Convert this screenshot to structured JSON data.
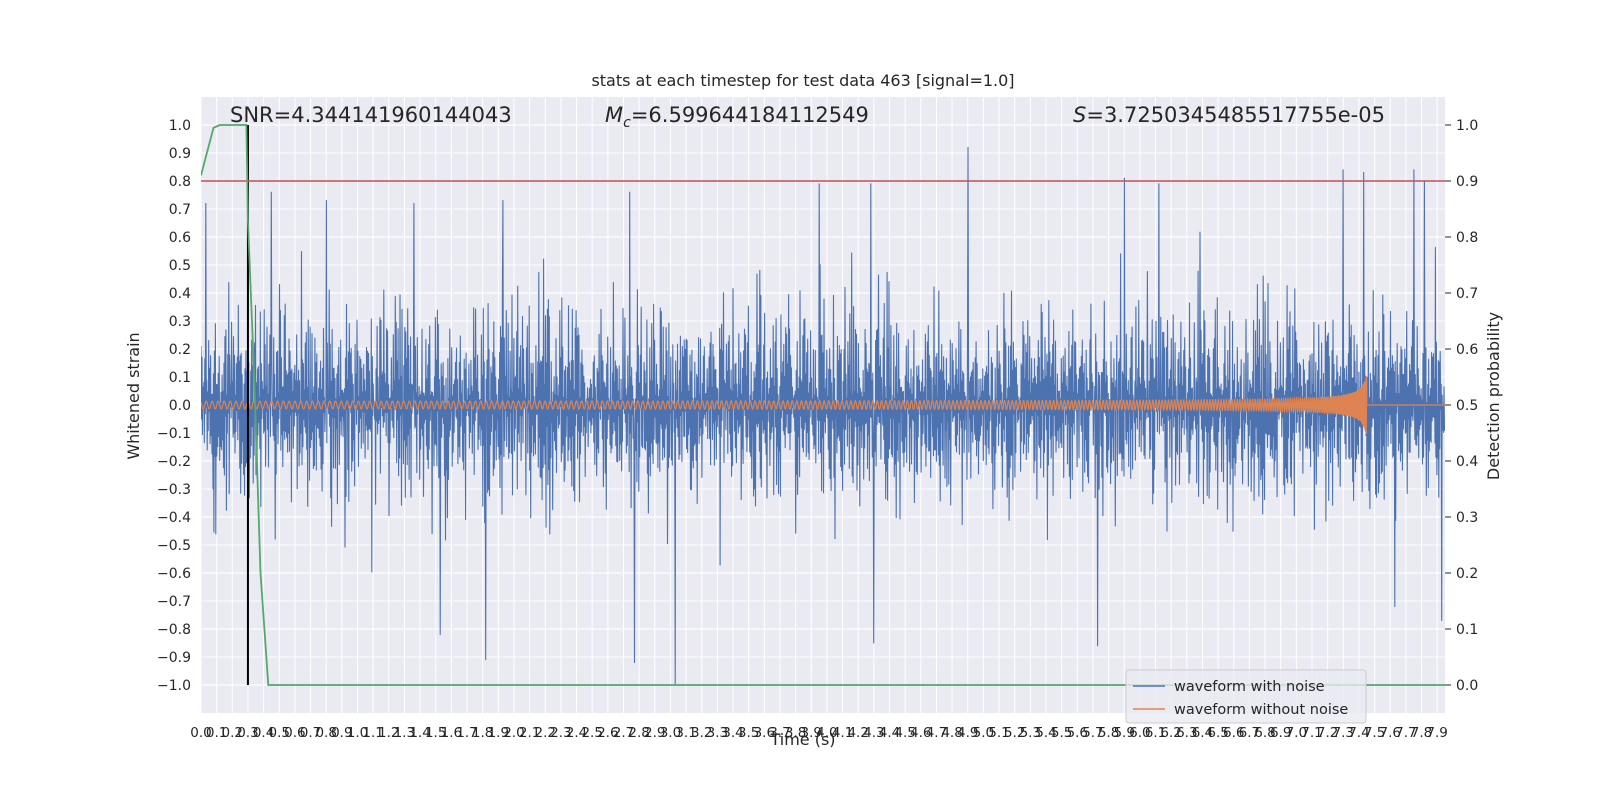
{
  "chart_data": {
    "type": "line",
    "title": "stats at each timestep for test data 463 [signal=1.0]",
    "xlabel": "Time (s)",
    "ylabel": "Whitened strain",
    "ylabel_right": "Detection probability",
    "xlim": [
      0.0,
      7.95
    ],
    "ylim": [
      -1.1,
      1.1
    ],
    "ylim_right": [
      -0.05,
      1.05
    ],
    "xticks": [
      0.0,
      0.1,
      0.2,
      0.3,
      0.4,
      0.5,
      0.6,
      0.7,
      0.8,
      0.9,
      1.0,
      1.1,
      1.2,
      1.3,
      1.4,
      1.5,
      1.6,
      1.7,
      1.8,
      1.9,
      2.0,
      2.1,
      2.2,
      2.3,
      2.4,
      2.5,
      2.6,
      2.7,
      2.8,
      2.9,
      3.0,
      3.1,
      3.2,
      3.3,
      3.4,
      3.5,
      3.6,
      3.7,
      3.8,
      3.9,
      4.0,
      4.1,
      4.2,
      4.3,
      4.4,
      4.5,
      4.6,
      4.7,
      4.8,
      4.9,
      5.0,
      5.1,
      5.2,
      5.3,
      5.4,
      5.5,
      5.6,
      5.7,
      5.8,
      5.9,
      6.0,
      6.1,
      6.2,
      6.3,
      6.4,
      6.5,
      6.6,
      6.7,
      6.8,
      6.9,
      7.0,
      7.1,
      7.2,
      7.3,
      7.4,
      7.5,
      7.6,
      7.7,
      7.8,
      7.9
    ],
    "yticks": [
      -1.0,
      -0.9,
      -0.8,
      -0.7,
      -0.6,
      -0.5,
      -0.4,
      -0.3,
      -0.2,
      -0.1,
      0.0,
      0.1,
      0.2,
      0.3,
      0.4,
      0.5,
      0.6,
      0.7,
      0.8,
      0.9,
      1.0
    ],
    "yticks_right": [
      0.0,
      0.1,
      0.2,
      0.3,
      0.4,
      0.5,
      0.6,
      0.7,
      0.8,
      0.9,
      1.0
    ],
    "xtick_labels": [
      "0.0",
      "0.1",
      "0.2",
      "0.3",
      "0.4",
      "0.5",
      "0.6",
      "0.7",
      "0.8",
      "0.9",
      "1.0",
      "1.1",
      "1.2",
      "1.3",
      "1.4",
      "1.5",
      "1.6",
      "1.7",
      "1.8",
      "1.9",
      "2.0",
      "2.1",
      "2.2",
      "2.3",
      "2.4",
      "2.5",
      "2.6",
      "2.7",
      "2.8",
      "2.9",
      "3.0",
      "3.1",
      "3.2",
      "3.3",
      "3.4",
      "3.5",
      "3.6",
      "3.7",
      "3.8",
      "3.9",
      "4.0",
      "4.1",
      "4.2",
      "4.3",
      "4.4",
      "4.5",
      "4.6",
      "4.7",
      "4.8",
      "4.9",
      "5.0",
      "5.1",
      "5.2",
      "5.3",
      "5.4",
      "5.5",
      "5.6",
      "5.7",
      "5.8",
      "5.9",
      "6.0",
      "6.1",
      "6.2",
      "6.3",
      "6.4",
      "6.5",
      "6.6",
      "6.7",
      "6.8",
      "6.9",
      "7.0",
      "7.1",
      "7.2",
      "7.3",
      "7.4",
      "7.5",
      "7.6",
      "7.7",
      "7.8",
      "7.9"
    ],
    "ytick_labels": [
      "−1.0",
      "−0.9",
      "−0.8",
      "−0.7",
      "−0.6",
      "−0.5",
      "−0.4",
      "−0.3",
      "−0.2",
      "−0.1",
      "0.0",
      "0.1",
      "0.2",
      "0.3",
      "0.4",
      "0.5",
      "0.6",
      "0.7",
      "0.8",
      "0.9",
      "1.0"
    ],
    "ytick_labels_right": [
      "0.0",
      "0.1",
      "0.2",
      "0.3",
      "0.4",
      "0.5",
      "0.6",
      "0.7",
      "0.8",
      "0.9",
      "1.0"
    ],
    "annotations": {
      "snr": "SNR=4.344141960144043",
      "mc": "=6.599644184112549",
      "s": "=3.7250345485517755e-05"
    },
    "series": [
      {
        "name": "waveform with noise",
        "color": "#4c72b0",
        "envelope_peaks": [
          [
            0.03,
            0.72
          ],
          [
            0.45,
            0.76
          ],
          [
            0.8,
            0.73
          ],
          [
            1.36,
            0.72
          ],
          [
            1.93,
            0.73
          ],
          [
            2.74,
            0.76
          ],
          [
            3.95,
            0.79
          ],
          [
            4.28,
            0.79
          ],
          [
            4.9,
            0.92
          ],
          [
            5.9,
            0.81
          ],
          [
            6.12,
            0.79
          ],
          [
            7.3,
            0.84
          ],
          [
            7.43,
            0.83
          ],
          [
            7.75,
            0.84
          ],
          [
            7.82,
            0.8
          ]
        ],
        "envelope_troughs": [
          [
            0.3,
            -0.72
          ],
          [
            1.53,
            -0.82
          ],
          [
            1.82,
            -0.91
          ],
          [
            2.77,
            -0.92
          ],
          [
            3.03,
            -1.0
          ],
          [
            4.3,
            -0.85
          ],
          [
            5.73,
            -0.86
          ],
          [
            7.63,
            -0.72
          ],
          [
            7.93,
            -0.77
          ]
        ],
        "noise_level": 0.34
      },
      {
        "name": "waveform without noise",
        "color": "#dd8452",
        "chirp_end_time": 7.45,
        "chirp_amplitude_start": 0.012,
        "chirp_amplitude_end": 0.12
      },
      {
        "name": "Detection probability",
        "color": "#55a868",
        "axis": "right",
        "points": [
          [
            0.0,
            0.91
          ],
          [
            0.08,
            0.995
          ],
          [
            0.12,
            1.0
          ],
          [
            0.29,
            1.0
          ],
          [
            0.3,
            0.83
          ],
          [
            0.34,
            0.55
          ],
          [
            0.38,
            0.2
          ],
          [
            0.43,
            0.0
          ],
          [
            7.95,
            0.0
          ]
        ]
      }
    ],
    "threshold_line": {
      "axis": "right",
      "value": 0.9,
      "color": "#c44e52"
    },
    "vertical_marker": {
      "x": 0.3,
      "y_range": [
        -1.0,
        1.0
      ],
      "color": "#000000"
    },
    "grid": true,
    "legend_position": "lower-right",
    "colors": {
      "background": "#eaeaf2",
      "grid": "#ffffff",
      "noise": "#4c72b0",
      "clean": "#dd8452",
      "probability": "#55a868",
      "threshold": "#c44e52",
      "marker": "#000000"
    }
  }
}
